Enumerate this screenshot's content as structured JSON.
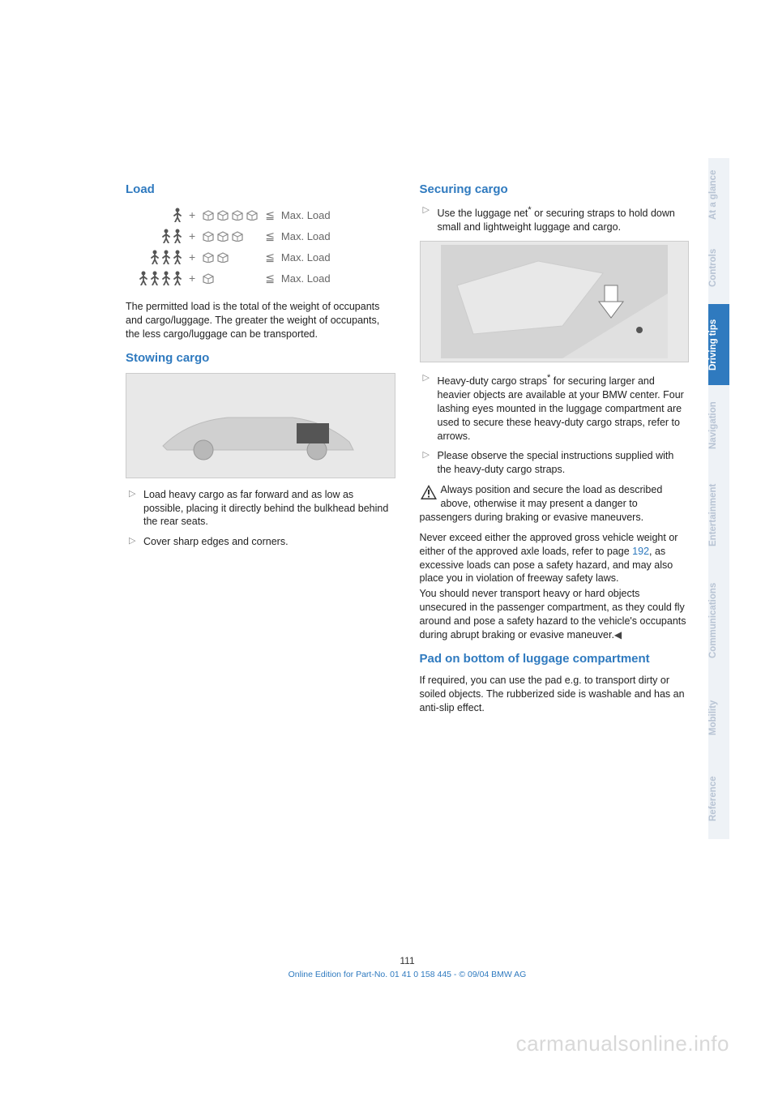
{
  "left": {
    "h_load": "Load",
    "load_rows": [
      {
        "people": 1,
        "boxes": 4,
        "label": "Max. Load"
      },
      {
        "people": 2,
        "boxes": 3,
        "label": "Max. Load"
      },
      {
        "people": 3,
        "boxes": 2,
        "label": "Max. Load"
      },
      {
        "people": 4,
        "boxes": 1,
        "label": "Max. Load"
      }
    ],
    "load_para": "The permitted load is the total of the weight of occupants and cargo/luggage. The greater the weight of occupants, the less cargo/luggage can be transported.",
    "h_stowing": "Stowing cargo",
    "stow_items": [
      "Load heavy cargo as far forward and as low as possible, placing it directly behind the bulkhead behind the rear seats.",
      "Cover sharp edges and corners."
    ]
  },
  "right": {
    "h_securing": "Securing cargo",
    "sec_item1_a": "Use the luggage net",
    "sec_item1_b": " or securing straps to hold down small and lightweight luggage and cargo.",
    "sec_item2_a": "Heavy-duty cargo straps",
    "sec_item2_b": " for securing larger and heavier objects are available at your BMW center. Four lashing eyes mounted in the luggage compartment are used to secure these heavy-duty cargo straps, refer to arrows.",
    "sec_item3": "Please observe the special instructions supplied with the heavy-duty cargo straps.",
    "warn_para1": "Always position and secure the load as described above, otherwise it may present a danger to passengers during braking or evasive maneuvers.",
    "warn_para2_a": "Never exceed either the approved gross vehicle weight or either of the approved axle loads, refer to page ",
    "warn_para2_link": "192",
    "warn_para2_b": ", as excessive loads can pose a safety hazard, and may also place you in violation of freeway safety laws.",
    "warn_para3": "You should never transport heavy or hard objects unsecured in the passenger compartment, as they could fly around and pose a safety hazard to the vehicle's occupants during abrupt braking or evasive maneuver.",
    "h_pad": "Pad on bottom of luggage compartment",
    "pad_para": "If required, you can use the pad e.g. to transport dirty or soiled objects. The rubberized side is washable and has an anti-slip effect."
  },
  "footer": {
    "page_num": "111",
    "line": "Online Edition for Part-No. 01 41 0 158 445 - © 09/04 BMW AG"
  },
  "watermark": "carmanualsonline.info",
  "tabs": [
    {
      "label": "At a glance",
      "active": false
    },
    {
      "label": "Controls",
      "active": false
    },
    {
      "label": "Driving tips",
      "active": true
    },
    {
      "label": "Navigation",
      "active": false
    },
    {
      "label": "Entertainment",
      "active": false
    },
    {
      "label": "Communications",
      "active": false
    },
    {
      "label": "Mobility",
      "active": false
    },
    {
      "label": "Reference",
      "active": false
    }
  ],
  "colors": {
    "accent": "#2f7abf",
    "tab_inactive_bg": "#eef2f6",
    "tab_inactive_fg": "#b8c4d4",
    "watermark": "#d8d8d8"
  }
}
